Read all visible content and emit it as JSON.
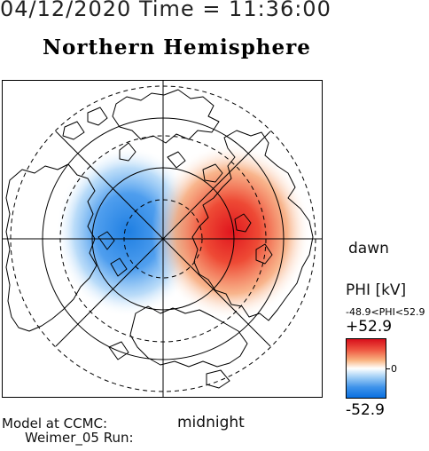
{
  "header": {
    "date_time": "04/12/2020 Time = 11:36:00",
    "hemisphere_title": "Northern Hemisphere"
  },
  "map": {
    "orientation_labels": {
      "right": "dawn",
      "bottom": "midnight"
    },
    "potential_cells": [
      {
        "name": "negative cell (dusk side)",
        "sign": "negative",
        "color": "#2a8ae8"
      },
      {
        "name": "positive cell (dawn side)",
        "sign": "positive",
        "color": "#e6201e"
      }
    ]
  },
  "colorbar": {
    "title": "PHI [kV]",
    "range_text": "-48.9<PHI<52.9",
    "max_label": "+52.9",
    "zero_label": "0",
    "min_label": "-52.9",
    "colors": {
      "max": "#d80f1c",
      "mid": "#ffffff",
      "min": "#0a6fe0"
    }
  },
  "footer": {
    "model_line1": "Model at CCMC:",
    "model_line2": "Weimer_05 Run:"
  }
}
